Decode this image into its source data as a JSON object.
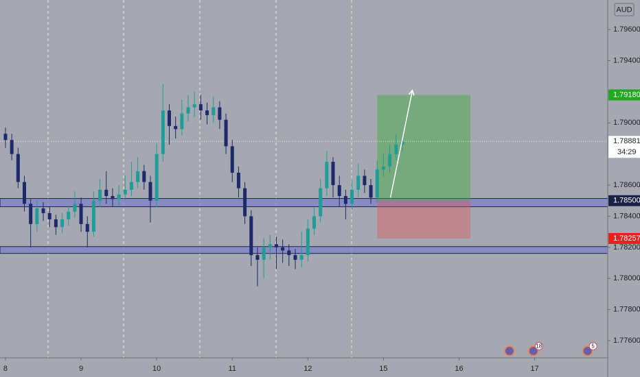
{
  "chart_data": {
    "type": "candlestick",
    "currency": "AUD",
    "xlim": [
      -0.87,
      95.6
    ],
    "xticks": [
      {
        "value": 0,
        "label": "8"
      },
      {
        "value": 12,
        "label": "9"
      },
      {
        "value": 24,
        "label": "10"
      },
      {
        "value": 36,
        "label": "11"
      },
      {
        "value": 48,
        "label": "12"
      },
      {
        "value": 60,
        "label": "15"
      },
      {
        "value": 72,
        "label": "16"
      },
      {
        "value": 84,
        "label": "17"
      }
    ],
    "ylim": [
      1.7749,
      1.7979
    ],
    "yticks": [
      {
        "value": 1.776,
        "label": "1.77600"
      },
      {
        "value": 1.778,
        "label": "1.77800"
      },
      {
        "value": 1.78,
        "label": "1.78000"
      },
      {
        "value": 1.782,
        "label": "1.78200"
      },
      {
        "value": 1.784,
        "label": "1.78400"
      },
      {
        "value": 1.786,
        "label": "1.78600"
      },
      {
        "value": 1.79,
        "label": "1.79000"
      },
      {
        "value": 1.794,
        "label": "1.79400"
      },
      {
        "value": 1.796,
        "label": "1.79600"
      }
    ],
    "up_color": "#1f9e98",
    "down_color": "#1c2a6b",
    "open": [
      1.7893,
      1.7889,
      1.788,
      1.7862,
      1.7848,
      1.7835,
      1.7845,
      1.7842,
      1.7838,
      1.7833,
      1.7838,
      1.7843,
      1.7848,
      1.7835,
      1.783,
      1.785,
      1.7857,
      1.7853,
      1.7851,
      1.7854,
      1.7857,
      1.7862,
      1.7869,
      1.7862,
      1.785,
      1.788,
      1.7908,
      1.7898,
      1.7896,
      1.7906,
      1.791,
      1.7912,
      1.7908,
      1.7905,
      1.791,
      1.7902,
      1.7885,
      1.7868,
      1.7858,
      1.784,
      1.7815,
      1.7812,
      1.782,
      1.7822,
      1.782,
      1.7818,
      1.7815,
      1.7812,
      1.7815,
      1.7832,
      1.784,
      1.7858,
      1.7875,
      1.786,
      1.7853,
      1.7848,
      1.7857,
      1.7866,
      1.786,
      1.7852,
      1.787,
      1.7872,
      1.788,
      1.7886
    ],
    "high": [
      1.7897,
      1.7893,
      1.7884,
      1.7866,
      1.7851,
      1.785,
      1.7849,
      1.7846,
      1.7841,
      1.7842,
      1.7847,
      1.7856,
      1.7852,
      1.784,
      1.7856,
      1.7864,
      1.7869,
      1.7858,
      1.786,
      1.7866,
      1.7875,
      1.7878,
      1.7873,
      1.7866,
      1.7887,
      1.7925,
      1.7912,
      1.7904,
      1.7915,
      1.7918,
      1.792,
      1.7918,
      1.7913,
      1.7917,
      1.7914,
      1.7906,
      1.7889,
      1.7872,
      1.7862,
      1.7844,
      1.782,
      1.7826,
      1.7828,
      1.7827,
      1.7825,
      1.7822,
      1.7819,
      1.783,
      1.7838,
      1.7846,
      1.7864,
      1.7882,
      1.7878,
      1.7866,
      1.7857,
      1.7863,
      1.7874,
      1.787,
      1.7864,
      1.7876,
      1.788,
      1.7886,
      1.7893,
      1.7892
    ],
    "low": [
      1.7884,
      1.7876,
      1.7858,
      1.7843,
      1.782,
      1.783,
      1.7837,
      1.7833,
      1.7828,
      1.7829,
      1.7834,
      1.7839,
      1.783,
      1.782,
      1.7827,
      1.7846,
      1.7848,
      1.7846,
      1.7847,
      1.785,
      1.7853,
      1.7858,
      1.7857,
      1.7836,
      1.7846,
      1.7875,
      1.7886,
      1.789,
      1.7892,
      1.7901,
      1.7904,
      1.7902,
      1.7899,
      1.79,
      1.7896,
      1.788,
      1.7862,
      1.7852,
      1.7835,
      1.7808,
      1.7795,
      1.78,
      1.7812,
      1.7806,
      1.781,
      1.7808,
      1.7806,
      1.7807,
      1.7811,
      1.7828,
      1.7836,
      1.7853,
      1.7852,
      1.7846,
      1.7838,
      1.7844,
      1.7852,
      1.7855,
      1.7848,
      1.7849,
      1.7865,
      1.7868,
      1.7876,
      1.7882
    ],
    "close": [
      1.7889,
      1.788,
      1.7862,
      1.7848,
      1.7835,
      1.7845,
      1.7842,
      1.7838,
      1.7833,
      1.7838,
      1.7843,
      1.7848,
      1.7835,
      1.783,
      1.785,
      1.7857,
      1.7853,
      1.7851,
      1.7854,
      1.7857,
      1.7862,
      1.7869,
      1.7862,
      1.785,
      1.788,
      1.7908,
      1.7898,
      1.7896,
      1.7906,
      1.791,
      1.7912,
      1.7908,
      1.7905,
      1.791,
      1.7902,
      1.7885,
      1.7868,
      1.7858,
      1.784,
      1.7815,
      1.7812,
      1.782,
      1.7822,
      1.782,
      1.7818,
      1.7815,
      1.7812,
      1.7815,
      1.7832,
      1.784,
      1.7858,
      1.7875,
      1.786,
      1.7853,
      1.7848,
      1.7857,
      1.7866,
      1.786,
      1.7852,
      1.787,
      1.7872,
      1.788,
      1.7886,
      1.78881
    ],
    "zones": [
      {
        "top": 1.78514,
        "bottom": 1.78461
      },
      {
        "top": 1.78205,
        "bottom": 1.78161
      }
    ],
    "position": {
      "start": 59,
      "end": 73.8,
      "entry": {
        "value": 1.785,
        "label": "1.78500"
      },
      "target": {
        "value": 1.7918,
        "label": "1.79180"
      },
      "stop": {
        "value": 1.78257,
        "label": "1.78257"
      }
    },
    "arrow": {
      "x": [
        61.1,
        64.6
      ],
      "y": [
        1.7852,
        1.7921
      ]
    },
    "last_price": {
      "value": 1.78881,
      "label": "1.78881",
      "countdown": "34:29"
    },
    "events": [
      {
        "x": 80
      },
      {
        "x": 83.8,
        "badge": "18"
      },
      {
        "x": 92.4,
        "badge": "5"
      }
    ]
  }
}
